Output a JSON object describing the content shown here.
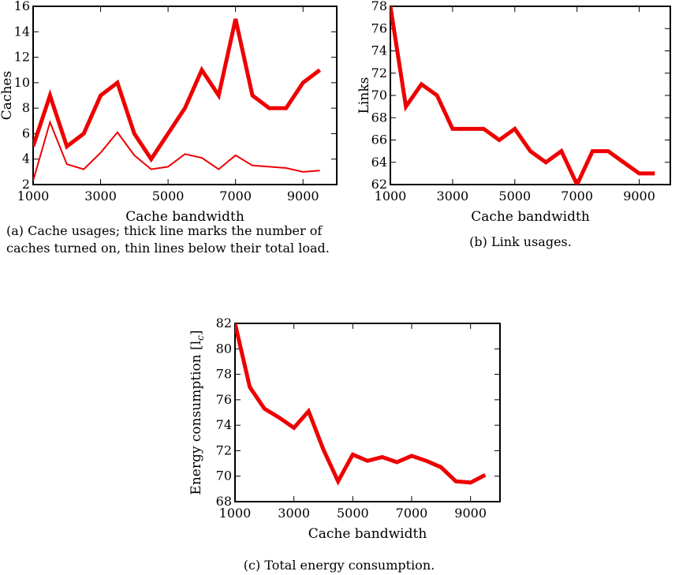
{
  "captions": {
    "a": "(a) Cache usages; thick line marks the number of caches turned on, thin lines below their total load.",
    "b": "(b) Link usages.",
    "c": "(c) Total energy consumption."
  },
  "colors": {
    "line": "#ee0000",
    "axis": "#000000"
  },
  "chart_data": [
    {
      "id": "a",
      "type": "line",
      "xlabel": "Cache bandwidth",
      "ylabel": "Caches",
      "xlim": [
        1000,
        10000
      ],
      "ylim": [
        2,
        16
      ],
      "xticks": [
        1000,
        3000,
        5000,
        7000,
        9000
      ],
      "yticks": [
        2,
        4,
        6,
        8,
        10,
        12,
        14,
        16
      ],
      "series": [
        {
          "style": "thick",
          "x": [
            1000,
            1500,
            2000,
            2500,
            3000,
            3500,
            4000,
            4500,
            5000,
            5500,
            6000,
            6500,
            7000,
            7500,
            8000,
            8500,
            9000,
            9500
          ],
          "y": [
            5,
            9,
            5,
            6,
            9,
            10,
            6,
            4,
            6,
            8,
            11,
            9,
            15,
            9,
            8,
            8,
            10,
            11
          ]
        },
        {
          "style": "thin",
          "x": [
            1000,
            1500,
            2000,
            2500,
            3000,
            3500,
            4000,
            4500,
            5000,
            5500,
            6000,
            6500,
            7000,
            7500,
            8000,
            8500,
            9000,
            9500
          ],
          "y": [
            2.3,
            6.9,
            3.6,
            3.2,
            4.5,
            6.1,
            4.3,
            3.2,
            3.4,
            4.4,
            4.1,
            3.2,
            4.3,
            3.5,
            3.4,
            3.3,
            3.0,
            3.1
          ]
        }
      ]
    },
    {
      "id": "b",
      "type": "line",
      "xlabel": "Cache bandwidth",
      "ylabel": "Links",
      "xlim": [
        1000,
        10000
      ],
      "ylim": [
        62,
        78
      ],
      "xticks": [
        1000,
        3000,
        5000,
        7000,
        9000
      ],
      "yticks": [
        62,
        64,
        66,
        68,
        70,
        72,
        74,
        76,
        78
      ],
      "series": [
        {
          "style": "thick",
          "x": [
            1000,
            1500,
            2000,
            2500,
            3000,
            3500,
            4000,
            4500,
            5000,
            5500,
            6000,
            6500,
            7000,
            7500,
            8000,
            8500,
            9000,
            9500
          ],
          "y": [
            78,
            69,
            71,
            70,
            67,
            67,
            67,
            66,
            67,
            65,
            64,
            65,
            62,
            65,
            65,
            64,
            63,
            63
          ]
        }
      ]
    },
    {
      "id": "c",
      "type": "line",
      "xlabel": "Cache bandwidth",
      "ylabel": "Energy consumption [l",
      "ylabel_sub": "c",
      "ylabel_end": "]",
      "xlim": [
        1000,
        10000
      ],
      "ylim": [
        68,
        82
      ],
      "xticks": [
        1000,
        3000,
        5000,
        7000,
        9000
      ],
      "yticks": [
        68,
        70,
        72,
        74,
        76,
        78,
        80,
        82
      ],
      "series": [
        {
          "style": "thick",
          "x": [
            1000,
            1500,
            2000,
            2500,
            3000,
            3500,
            4000,
            4500,
            5000,
            5500,
            6000,
            6500,
            7000,
            7500,
            8000,
            8500,
            9000,
            9500
          ],
          "y": [
            82,
            77,
            75.3,
            74.6,
            73.8,
            75.1,
            72.1,
            69.6,
            71.7,
            71.2,
            71.5,
            71.1,
            71.6,
            71.2,
            70.7,
            69.6,
            69.5,
            70.1
          ]
        }
      ]
    }
  ]
}
